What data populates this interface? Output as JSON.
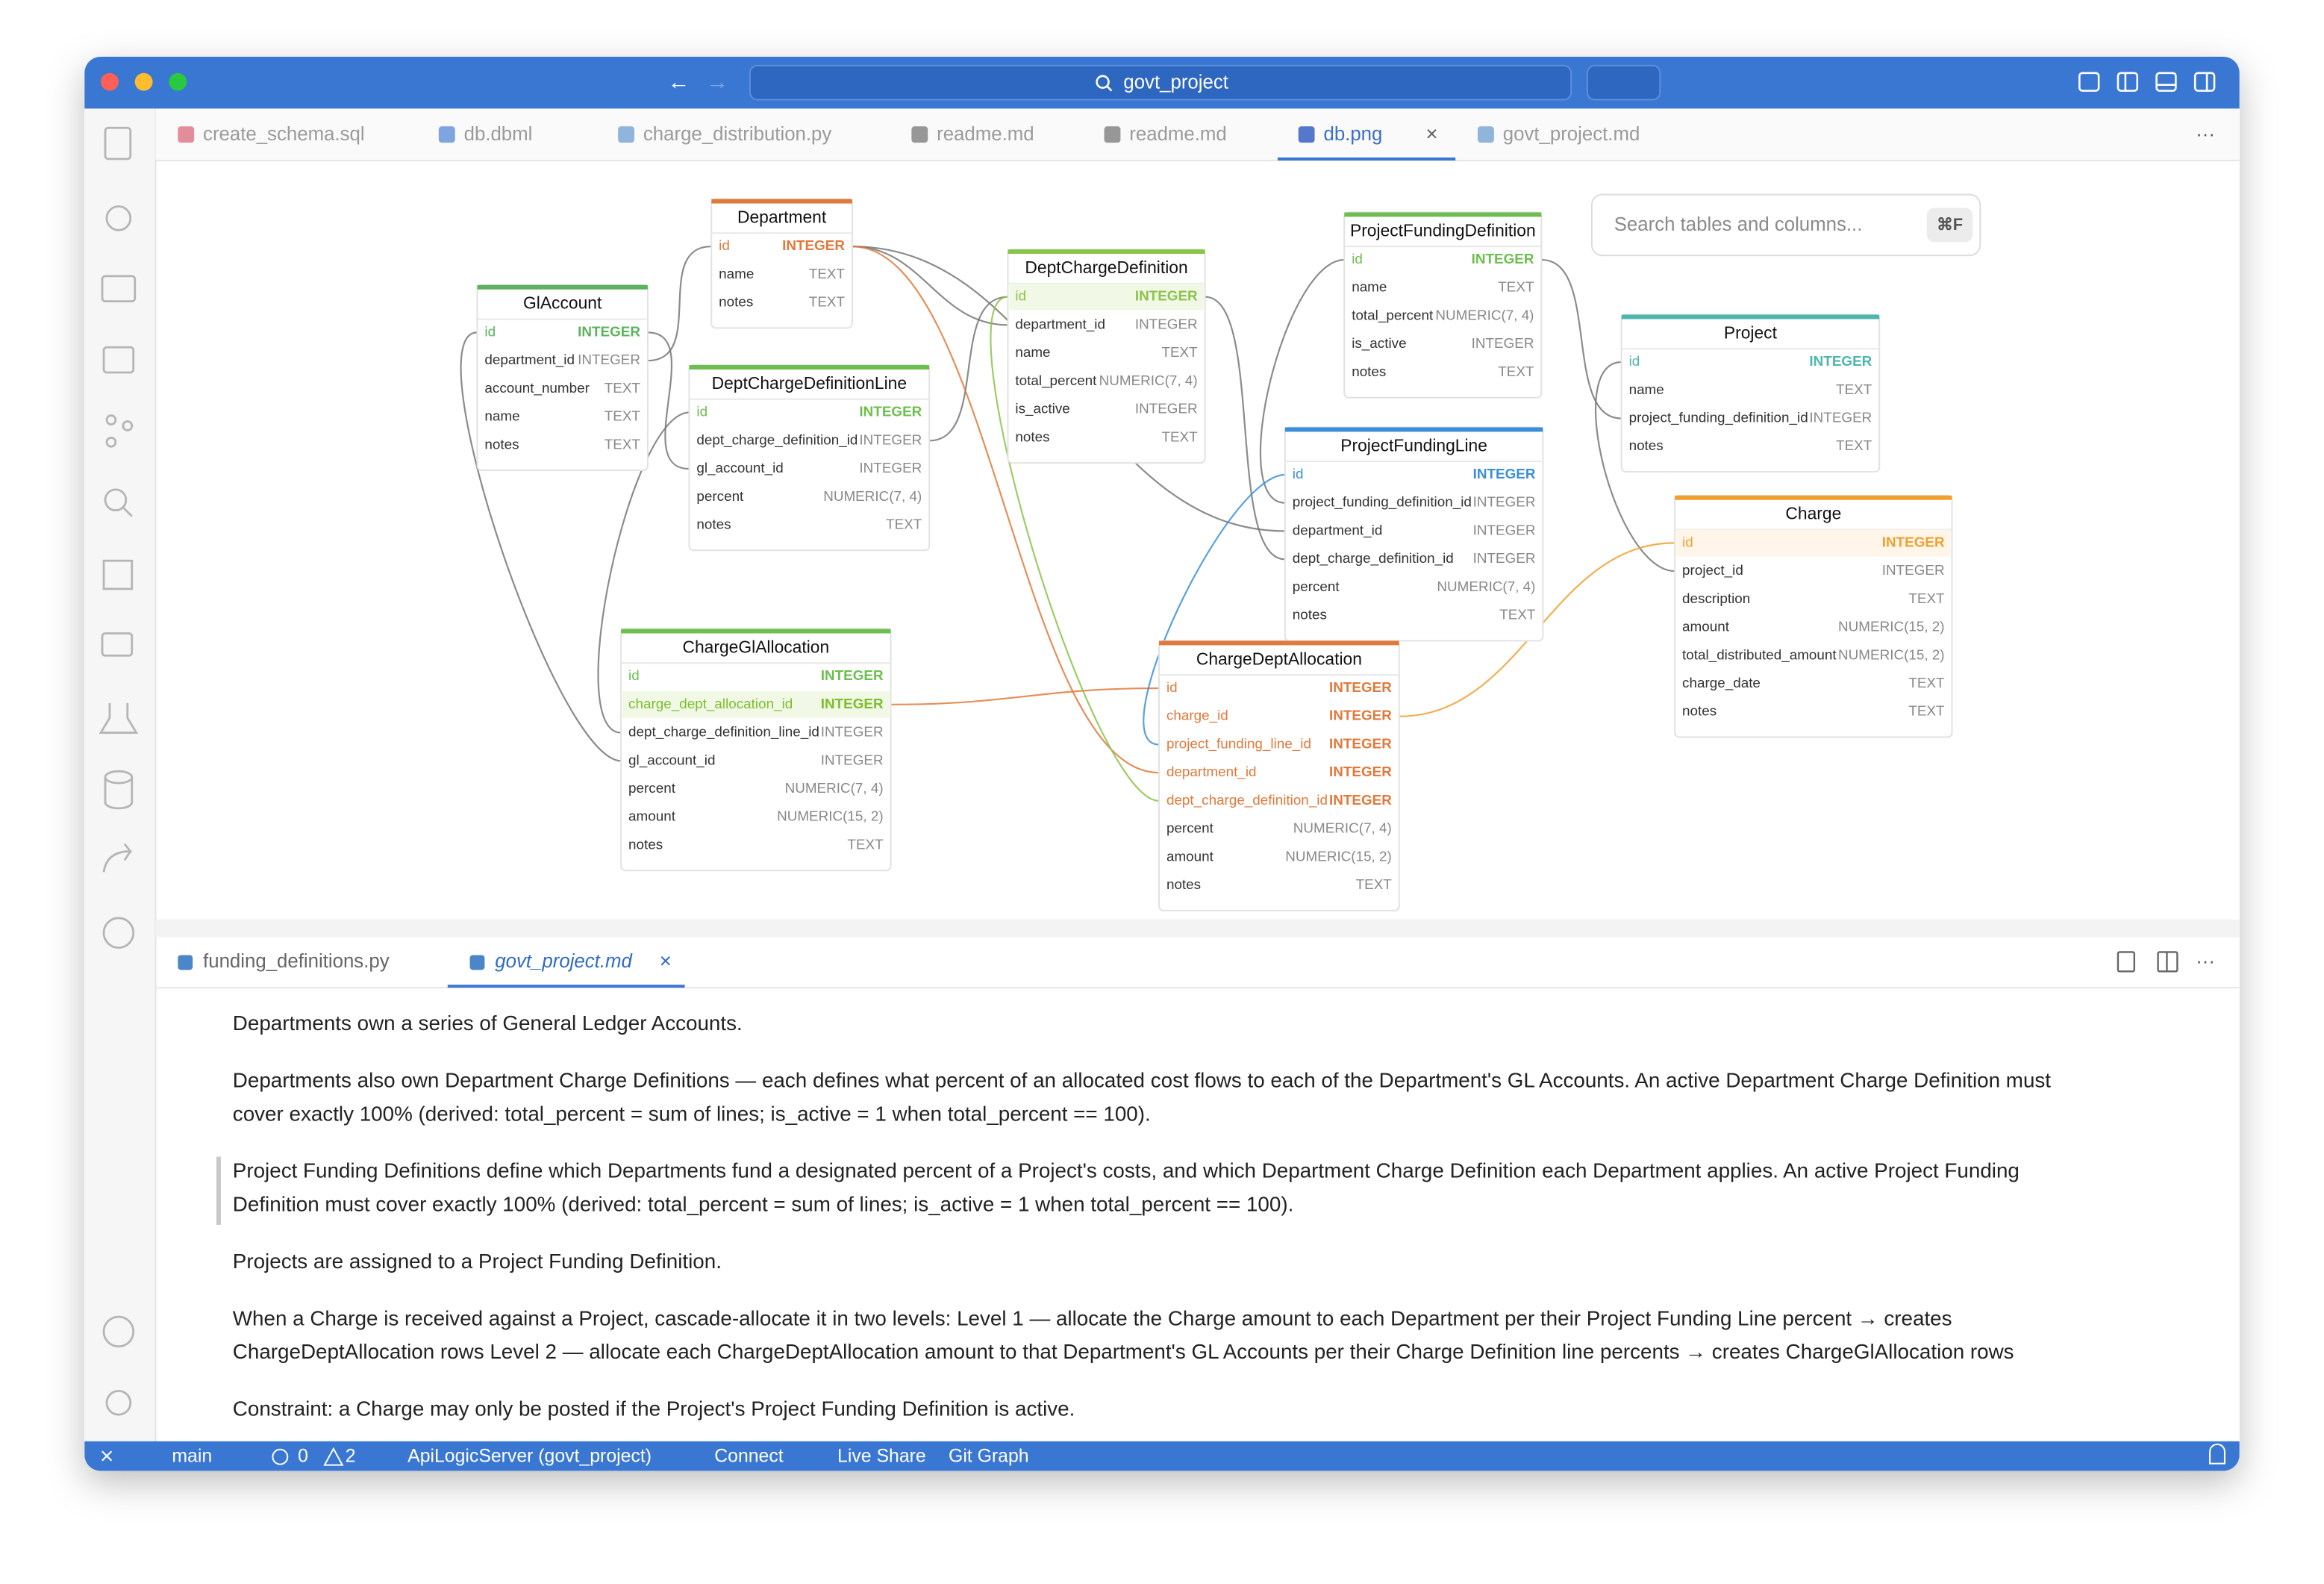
{
  "window": {
    "title": "govt_project"
  },
  "editor_tabs": [
    "create_schema.sql",
    "db.dbml",
    "charge_distribution.py",
    "readme.md",
    "readme.md",
    "db.png",
    "govt_project.md"
  ],
  "diagram": {
    "search_placeholder": "Search tables and columns...",
    "search_shortcut": "⌘F",
    "tables": [
      {
        "name": "Department",
        "columns": [
          [
            "id",
            "INTEGER"
          ],
          [
            "name",
            "TEXT"
          ],
          [
            "notes",
            "TEXT"
          ]
        ]
      },
      {
        "name": "GlAccount",
        "columns": [
          [
            "id",
            "INTEGER"
          ],
          [
            "department_id",
            "INTEGER"
          ],
          [
            "account_number",
            "TEXT"
          ],
          [
            "name",
            "TEXT"
          ],
          [
            "notes",
            "TEXT"
          ]
        ]
      },
      {
        "name": "DeptChargeDefinitionLine",
        "columns": [
          [
            "id",
            "INTEGER"
          ],
          [
            "dept_charge_definition_id",
            "INTEGER"
          ],
          [
            "gl_account_id",
            "INTEGER"
          ],
          [
            "percent",
            "NUMERIC(7, 4)"
          ],
          [
            "notes",
            "TEXT"
          ]
        ]
      },
      {
        "name": "DeptChargeDefinition",
        "columns": [
          [
            "id",
            "INTEGER"
          ],
          [
            "department_id",
            "INTEGER"
          ],
          [
            "name",
            "TEXT"
          ],
          [
            "total_percent",
            "NUMERIC(7, 4)"
          ],
          [
            "is_active",
            "INTEGER"
          ],
          [
            "notes",
            "TEXT"
          ]
        ]
      },
      {
        "name": "ProjectFundingDefinition",
        "columns": [
          [
            "id",
            "INTEGER"
          ],
          [
            "name",
            "TEXT"
          ],
          [
            "total_percent",
            "NUMERIC(7, 4)"
          ],
          [
            "is_active",
            "INTEGER"
          ],
          [
            "notes",
            "TEXT"
          ]
        ]
      },
      {
        "name": "Project",
        "columns": [
          [
            "id",
            "INTEGER"
          ],
          [
            "name",
            "TEXT"
          ],
          [
            "project_funding_definition_id",
            "INTEGER"
          ],
          [
            "notes",
            "TEXT"
          ]
        ]
      },
      {
        "name": "ProjectFundingLine",
        "columns": [
          [
            "id",
            "INTEGER"
          ],
          [
            "project_funding_definition_id",
            "INTEGER"
          ],
          [
            "department_id",
            "INTEGER"
          ],
          [
            "dept_charge_definition_id",
            "INTEGER"
          ],
          [
            "percent",
            "NUMERIC(7, 4)"
          ],
          [
            "notes",
            "TEXT"
          ]
        ]
      },
      {
        "name": "Charge",
        "columns": [
          [
            "id",
            "INTEGER"
          ],
          [
            "project_id",
            "INTEGER"
          ],
          [
            "description",
            "TEXT"
          ],
          [
            "amount",
            "NUMERIC(15, 2)"
          ],
          [
            "total_distributed_amount",
            "NUMERIC(15, 2)"
          ],
          [
            "charge_date",
            "TEXT"
          ],
          [
            "notes",
            "TEXT"
          ]
        ]
      },
      {
        "name": "ChargeGlAllocation",
        "columns": [
          [
            "id",
            "INTEGER"
          ],
          [
            "charge_dept_allocation_id",
            "INTEGER"
          ],
          [
            "dept_charge_definition_line_id",
            "INTEGER"
          ],
          [
            "gl_account_id",
            "INTEGER"
          ],
          [
            "percent",
            "NUMERIC(7, 4)"
          ],
          [
            "amount",
            "NUMERIC(15, 2)"
          ],
          [
            "notes",
            "TEXT"
          ]
        ]
      },
      {
        "name": "ChargeDeptAllocation",
        "columns": [
          [
            "id",
            "INTEGER"
          ],
          [
            "charge_id",
            "INTEGER"
          ],
          [
            "project_funding_line_id",
            "INTEGER"
          ],
          [
            "department_id",
            "INTEGER"
          ],
          [
            "dept_charge_definition_id",
            "INTEGER"
          ],
          [
            "percent",
            "NUMERIC(7, 4)"
          ],
          [
            "amount",
            "NUMERIC(15, 2)"
          ],
          [
            "notes",
            "TEXT"
          ]
        ]
      }
    ]
  },
  "panel_tabs": [
    "funding_definitions.py",
    "govt_project.md"
  ],
  "document": {
    "paragraphs": [
      [
        "Departments own a series of General Ledger Accounts."
      ],
      [
        "Departments also own Department Charge Definitions — each defines what percent of an allocated cost flows to each of the Department's GL Accounts. An active Department Charge Definition must",
        "cover exactly 100% (derived: total_percent = sum of lines; is_active = 1 when total_percent == 100)."
      ],
      [
        "Project Funding Definitions define which Departments fund a designated percent of a Project's costs, and which Department Charge Definition each Department applies. An active Project Funding",
        "Definition must cover exactly 100% (derived: total_percent = sum of lines; is_active = 1 when total_percent == 100)."
      ],
      [
        "Projects are assigned to a Project Funding Definition."
      ],
      [
        "When a Charge is received against a Project, cascade-allocate it in two levels: Level 1 — allocate the Charge amount to each Department per their Project Funding Line percent → creates",
        "ChargeDeptAllocation rows Level 2 — allocate each ChargeDeptAllocation amount to that Department's GL Accounts per their Charge Definition line percents → creates ChargeGlAllocation rows"
      ],
      [
        "Constraint: a Charge may only be posted if the Project's Project Funding Definition is active."
      ]
    ]
  },
  "status_bar": {
    "branch": "main",
    "errors": 0,
    "warnings": 2,
    "items": [
      "ApiLogicServer (govt_project)",
      "Connect",
      "Live Share",
      "Git Graph"
    ]
  }
}
